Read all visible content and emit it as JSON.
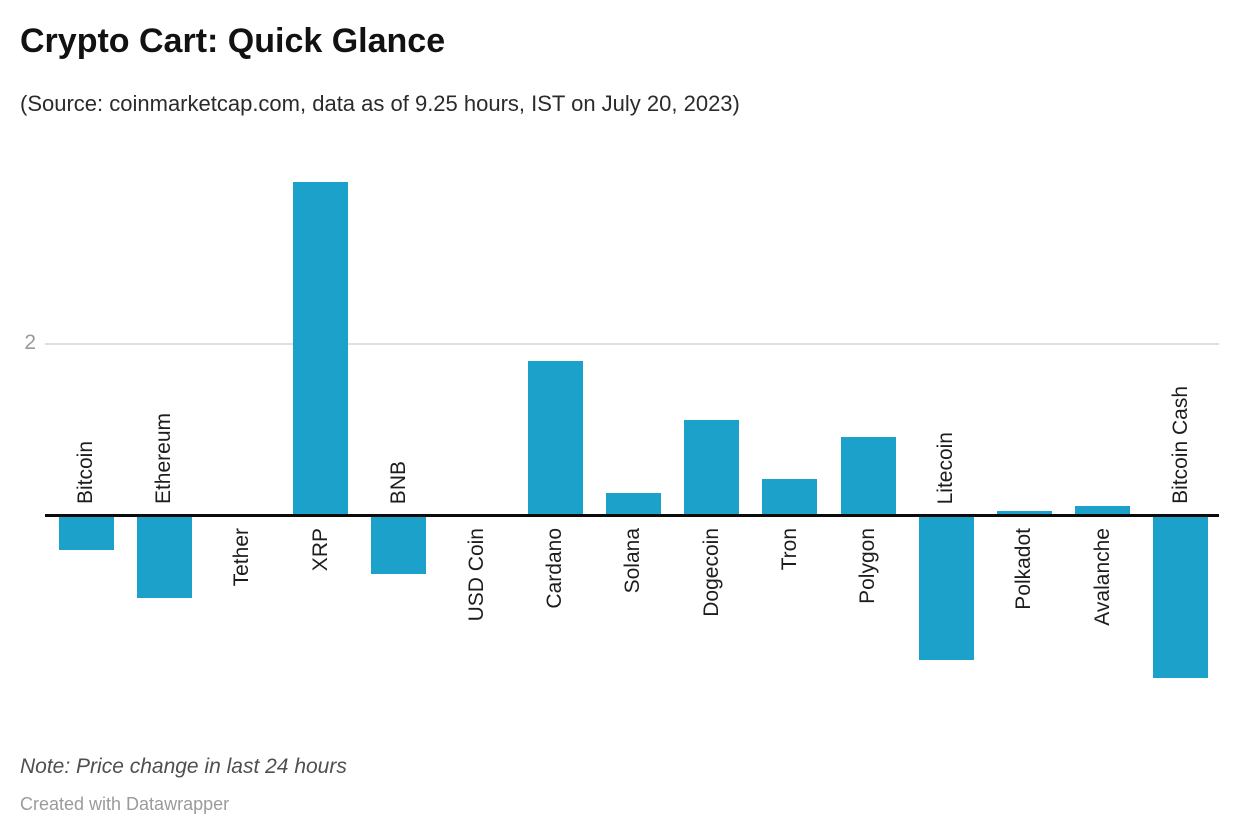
{
  "header": {
    "title": "Crypto Cart: Quick Glance",
    "subtitle": "(Source: coinmarketcap.com, data as of 9.25 hours, IST on July 20, 2023)"
  },
  "chart_data": {
    "type": "bar",
    "title": "Crypto Cart: Quick Glance",
    "subtitle": "(Source: coinmarketcap.com, data as of 9.25 hours, IST on July 20, 2023)",
    "categories": [
      "Bitcoin",
      "Ethereum",
      "Tether",
      "XRP",
      "BNB",
      "USD Coin",
      "Cardano",
      "Solana",
      "Dogecoin",
      "Tron",
      "Polygon",
      "Litecoin",
      "Polkadot",
      "Avalanche",
      "Bitcoin Cash"
    ],
    "values": [
      -0.39,
      -0.95,
      0,
      3.88,
      -0.67,
      0,
      1.8,
      0.27,
      1.12,
      0.43,
      0.92,
      -1.67,
      0.06,
      0.12,
      -1.88
    ],
    "value_unit": "percent change in last 24 hours",
    "xlabel": "",
    "ylabel": "",
    "ylim": [
      -2.1,
      3.95
    ],
    "y_ticks": [
      2
    ],
    "y_tick_labels": [
      "2"
    ],
    "grid": "single horizontal gridline at y=2, black zero baseline",
    "legend": "none",
    "orientation": "vertical",
    "label_placement": "rotated 90deg, below baseline for positive/zero bars, above baseline for negative bars",
    "bar_color": "#1ca1cb",
    "baseline_color": "#0b0b0b",
    "gridline_color": "#dfdfdf",
    "tick_color": "#9a9a9a"
  },
  "footer": {
    "note": "Note: Price change in last 24 hours",
    "credit": "Created with Datawrapper"
  }
}
